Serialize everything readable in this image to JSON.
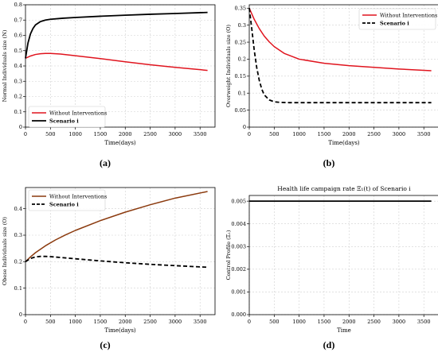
{
  "captions": [
    "(a)",
    "(b)",
    "(c)",
    "(d)"
  ],
  "chart_data": [
    {
      "type": "line",
      "title": "",
      "xlabel": "Time(days)",
      "ylabel": "Normal Individuals size (N)",
      "xlim": [
        0,
        3800
      ],
      "ylim": [
        0,
        0.8
      ],
      "xticks": [
        0,
        500,
        1000,
        1500,
        2000,
        2500,
        3000,
        3500
      ],
      "yticks": [
        0,
        0.1,
        0.2,
        0.3,
        0.4,
        0.5,
        0.6,
        0.7,
        0.8
      ],
      "grid": true,
      "legend_position": "bottom-left",
      "series": [
        {
          "name": "Without Interventions",
          "color": "#e0141e",
          "style": "solid",
          "bold": false,
          "x": [
            0,
            100,
            200,
            300,
            400,
            500,
            700,
            1000,
            1500,
            2000,
            2500,
            3000,
            3650
          ],
          "y": [
            0.45,
            0.465,
            0.475,
            0.48,
            0.482,
            0.482,
            0.478,
            0.467,
            0.448,
            0.427,
            0.408,
            0.391,
            0.371
          ]
        },
        {
          "name": "Scenario i",
          "color": "#000000",
          "style": "solid",
          "bold": true,
          "x": [
            0,
            50,
            100,
            150,
            200,
            300,
            400,
            500,
            750,
            1000,
            1500,
            2000,
            2500,
            3000,
            3650
          ],
          "y": [
            0.45,
            0.55,
            0.61,
            0.645,
            0.668,
            0.69,
            0.7,
            0.705,
            0.712,
            0.717,
            0.725,
            0.732,
            0.738,
            0.743,
            0.75
          ]
        }
      ]
    },
    {
      "type": "line",
      "title": "",
      "xlabel": "Time(days)",
      "ylabel": "Overweight Individuals size (O)",
      "xlim": [
        0,
        3800
      ],
      "ylim": [
        0,
        0.36
      ],
      "xticks": [
        0,
        500,
        1000,
        1500,
        2000,
        2500,
        3000,
        3500
      ],
      "yticks": [
        0,
        0.05,
        0.1,
        0.15,
        0.2,
        0.25,
        0.3,
        0.35
      ],
      "grid": true,
      "legend_position": "top-right",
      "series": [
        {
          "name": "Without Interventions",
          "color": "#e0141e",
          "style": "solid",
          "bold": false,
          "x": [
            0,
            100,
            200,
            300,
            400,
            500,
            700,
            1000,
            1500,
            2000,
            2500,
            3000,
            3650
          ],
          "y": [
            0.35,
            0.317,
            0.29,
            0.268,
            0.251,
            0.237,
            0.217,
            0.2,
            0.188,
            0.181,
            0.176,
            0.171,
            0.166
          ]
        },
        {
          "name": "Scenario i",
          "color": "#000000",
          "style": "dashed",
          "bold": true,
          "x": [
            0,
            50,
            100,
            150,
            200,
            250,
            300,
            400,
            500,
            600,
            800,
            1000,
            1500,
            2000,
            2500,
            3000,
            3650
          ],
          "y": [
            0.35,
            0.29,
            0.226,
            0.175,
            0.138,
            0.112,
            0.095,
            0.08,
            0.0745,
            0.073,
            0.072,
            0.072,
            0.072,
            0.072,
            0.072,
            0.072,
            0.072
          ]
        }
      ]
    },
    {
      "type": "line",
      "title": "",
      "xlabel": "Time(days)",
      "ylabel": "Obese Individuals size (O)",
      "xlim": [
        0,
        3800
      ],
      "ylim": [
        0,
        0.48
      ],
      "xticks": [
        0,
        500,
        1000,
        1500,
        2000,
        2500,
        3000,
        3500
      ],
      "yticks": [
        0,
        0.1,
        0.2,
        0.3,
        0.4
      ],
      "grid": true,
      "legend_position": "top-left",
      "series": [
        {
          "name": "Without Interventions",
          "color": "#8b3a0e",
          "style": "solid",
          "bold": false,
          "x": [
            0,
            100,
            200,
            400,
            600,
            800,
            1000,
            1500,
            2000,
            2500,
            3000,
            3650
          ],
          "y": [
            0.2,
            0.218,
            0.234,
            0.26,
            0.282,
            0.301,
            0.318,
            0.355,
            0.387,
            0.415,
            0.44,
            0.465
          ]
        },
        {
          "name": "Scenario i",
          "color": "#000000",
          "style": "dashed",
          "bold": true,
          "x": [
            0,
            100,
            200,
            300,
            400,
            500,
            700,
            1000,
            1500,
            2000,
            2500,
            3000,
            3650
          ],
          "y": [
            0.2,
            0.212,
            0.218,
            0.22,
            0.22,
            0.219,
            0.216,
            0.211,
            0.203,
            0.196,
            0.19,
            0.185,
            0.179
          ]
        }
      ]
    },
    {
      "type": "line",
      "title": "Health life campaign rate Ξ₁(t) of Scenario i",
      "xlabel": "Time",
      "ylabel": "Control Profile (Ξ₁)",
      "xlim": [
        0,
        3800
      ],
      "ylim": [
        0,
        0.00525
      ],
      "xticks": [
        0,
        500,
        1000,
        1500,
        2000,
        2500,
        3000,
        3500
      ],
      "yticks": [
        0,
        0.001,
        0.002,
        0.003,
        0.004,
        0.005
      ],
      "ytick_labels": [
        "0.000",
        "0.001",
        "0.002",
        "0.003",
        "0.004",
        "0.005"
      ],
      "grid": true,
      "series": [
        {
          "color": "#000000",
          "style": "solid",
          "bold": true,
          "x": [
            0,
            3650
          ],
          "y": [
            0.005,
            0.005
          ]
        }
      ]
    }
  ]
}
